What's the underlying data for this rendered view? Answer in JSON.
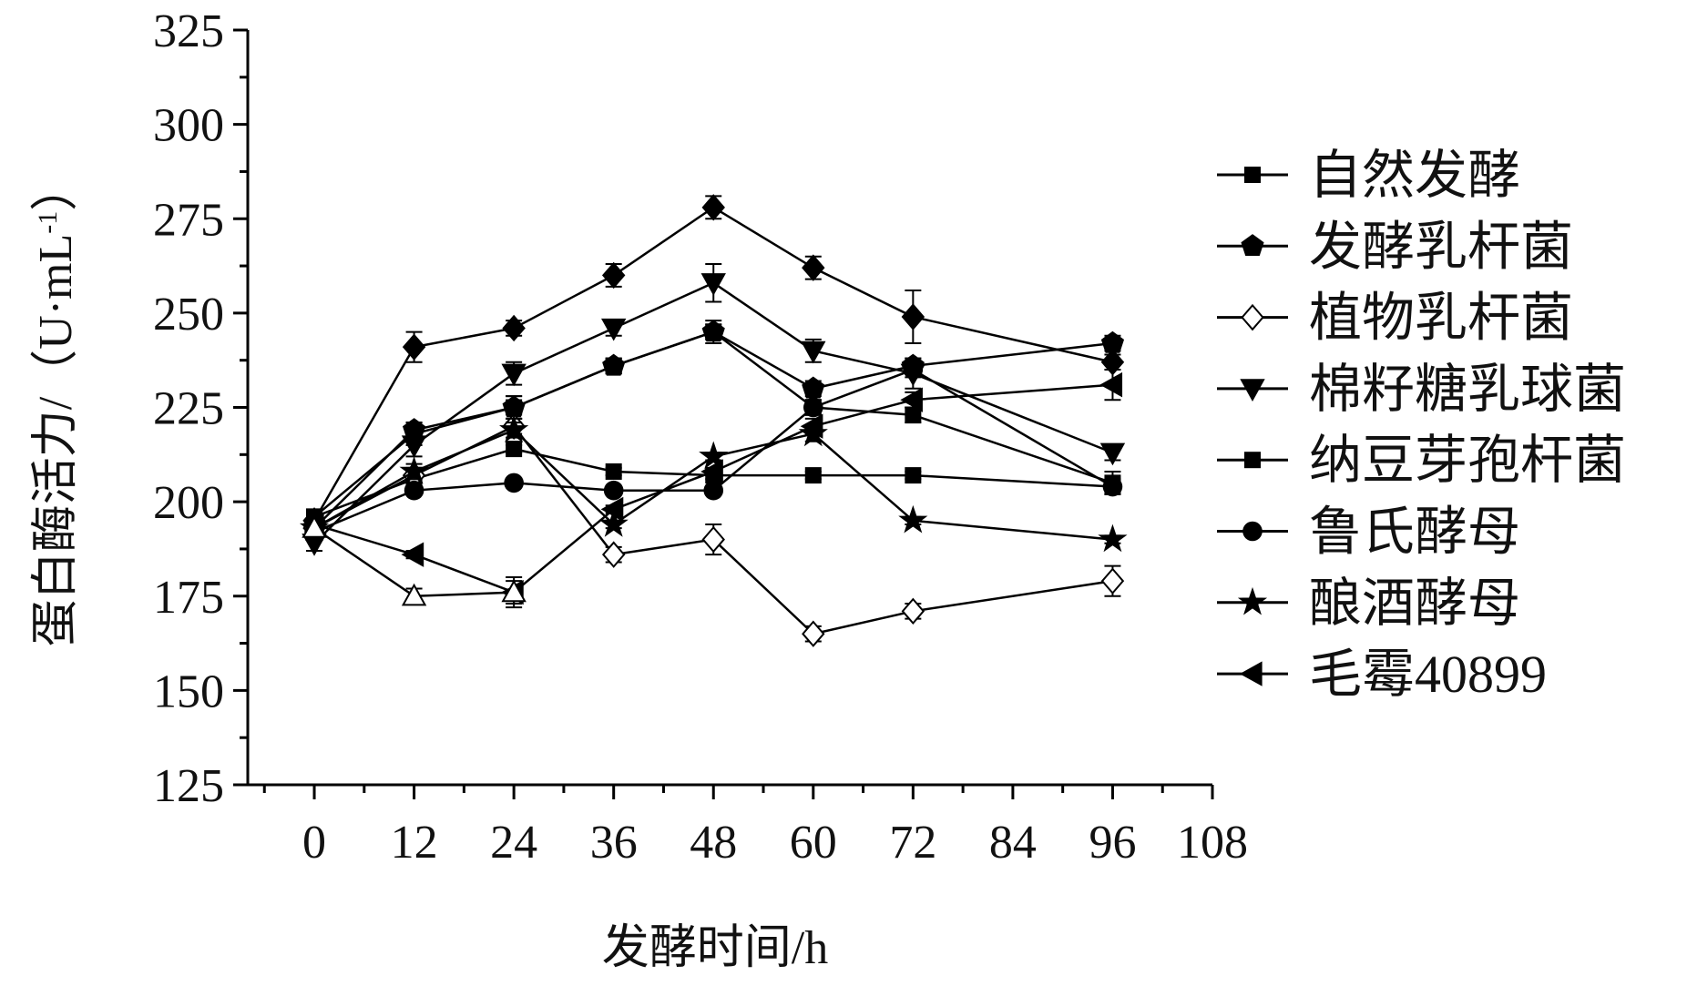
{
  "chart_data": {
    "type": "line",
    "title": "",
    "xlabel": "发酵时间/h",
    "ylabel_main": "蛋白酶活力/（U·mL",
    "ylabel_sup": "-1",
    "ylabel_close": "）",
    "xlim": [
      -8,
      108
    ],
    "ylim": [
      125,
      325
    ],
    "xticks": [
      0,
      12,
      24,
      36,
      48,
      60,
      72,
      84,
      96,
      108
    ],
    "yticks": [
      125,
      150,
      175,
      200,
      225,
      250,
      275,
      300,
      325
    ],
    "legend_position": "right",
    "grid": false,
    "series": [
      {
        "name": "自然发酵",
        "marker": "square",
        "x": [
          0,
          12,
          24,
          36,
          48,
          60,
          72,
          96
        ],
        "y": [
          196,
          206,
          214,
          208,
          207,
          207,
          207,
          204
        ],
        "err": [
          1,
          1,
          1,
          1,
          1,
          1,
          1,
          1
        ]
      },
      {
        "name": "发酵乳杆菌",
        "marker": "pentagon",
        "x": [
          0,
          12,
          24,
          36,
          48,
          60,
          72,
          96
        ],
        "y": [
          193,
          219,
          225,
          236,
          245,
          230,
          236,
          242
        ],
        "err": [
          2,
          2,
          3,
          2,
          2,
          2,
          2,
          2
        ]
      },
      {
        "name": "植物乳杆菌",
        "marker": "diamond-open",
        "x": [
          0,
          12,
          24,
          36,
          48,
          60,
          72,
          96
        ],
        "y": [
          193,
          207,
          220,
          186,
          190,
          165,
          171,
          179
        ],
        "err": [
          2,
          2,
          2,
          2,
          4,
          2,
          2,
          4
        ]
      },
      {
        "name": "棉籽糖乳球菌",
        "marker": "triangle-down",
        "x": [
          0,
          12,
          24,
          36,
          48,
          60,
          72,
          96
        ],
        "y": [
          189,
          215,
          234,
          246,
          258,
          240,
          234,
          213
        ],
        "err": [
          2,
          3,
          3,
          2,
          5,
          3,
          4,
          2
        ]
      },
      {
        "name": "纳豆芽孢杆菌",
        "marker": "square",
        "x": [
          0,
          12,
          24,
          36,
          48,
          60,
          72,
          96
        ],
        "y": [
          196,
          218,
          225,
          236,
          245,
          225,
          223,
          205
        ],
        "err": [
          2,
          3,
          3,
          2,
          3,
          2,
          2,
          3
        ]
      },
      {
        "name": "鲁氏酵母",
        "marker": "circle",
        "x": [
          0,
          12,
          24,
          36,
          48,
          60,
          72,
          96
        ],
        "y": [
          192,
          203,
          205,
          203,
          203,
          225,
          235,
          204
        ],
        "err": [
          1,
          1,
          1,
          1,
          1,
          2,
          2,
          2
        ]
      },
      {
        "name": "酿酒酵母",
        "marker": "star",
        "x": [
          0,
          12,
          24,
          36,
          48,
          60,
          72,
          96
        ],
        "y": [
          193,
          208,
          219,
          194,
          212,
          218,
          195,
          190
        ],
        "err": [
          1,
          2,
          2,
          1,
          1,
          2,
          1,
          1
        ]
      },
      {
        "name": "毛霉40899",
        "marker": "triangle-left",
        "x": [
          0,
          12,
          24,
          36,
          48,
          60,
          72,
          96
        ],
        "y": [
          194,
          186,
          176,
          198,
          208,
          220,
          227,
          231
        ],
        "err": [
          1,
          1,
          3,
          1,
          1,
          2,
          2,
          4
        ]
      },
      {
        "name": "",
        "marker": "diamond-filled",
        "x": [
          0,
          12,
          24,
          36,
          48,
          60,
          72,
          96
        ],
        "y": [
          195,
          241,
          246,
          260,
          278,
          262,
          249,
          237
        ],
        "err": [
          2,
          4,
          2,
          3,
          3,
          3,
          7,
          2
        ]
      },
      {
        "name": "",
        "marker": "triangle-up-open",
        "x": [
          0,
          12,
          24
        ],
        "y": [
          193,
          175,
          176
        ],
        "err": [
          1,
          2,
          4
        ]
      }
    ]
  }
}
